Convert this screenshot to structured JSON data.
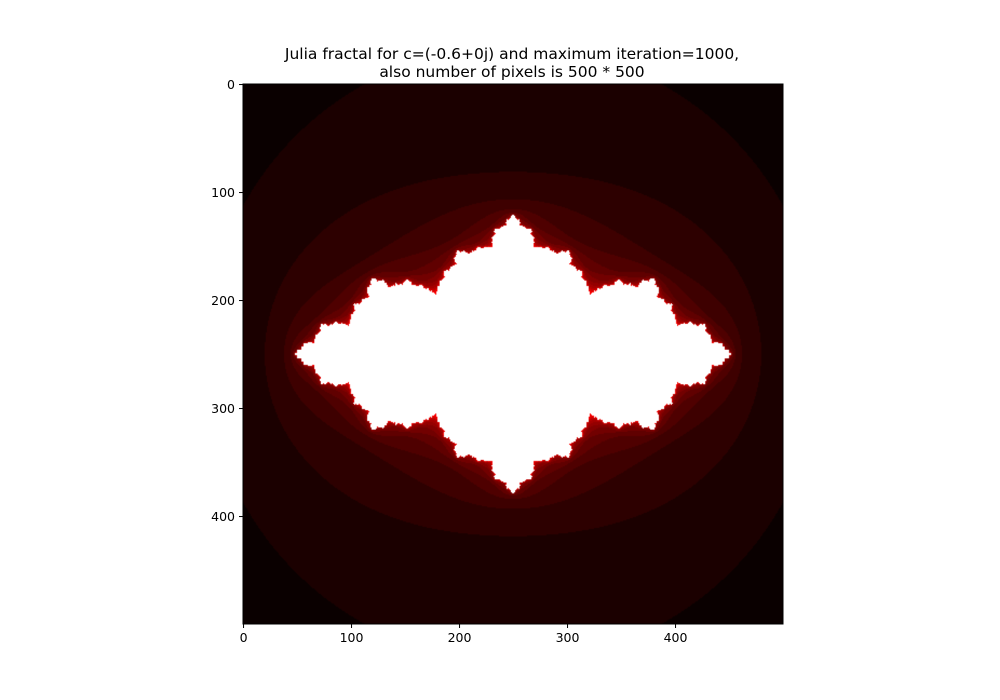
{
  "chart_data": {
    "type": "heatmap",
    "title_lines": [
      "Julia fractal for c=(-0.6+0j) and maximum iteration=1000,",
      "also number of pixels is 500 * 500"
    ],
    "image_size": [
      500,
      500
    ],
    "xlim": [
      -0.5,
      499.5
    ],
    "ylim": [
      499.5,
      -0.5
    ],
    "xticks": [
      0,
      100,
      200,
      300,
      400
    ],
    "yticks": [
      0,
      100,
      200,
      300,
      400
    ],
    "c": {
      "re": -0.6,
      "im": 0
    },
    "max_iteration": 1000,
    "escape_radius": 2,
    "complex_range": {
      "re": [
        -1.75,
        1.75
      ],
      "im": [
        -1.75,
        1.75
      ]
    },
    "colormap": {
      "name": "hot",
      "stops": [
        {
          "t": 0.0,
          "color": "#0a0000"
        },
        {
          "t": 0.365,
          "color": "#ff0000"
        },
        {
          "t": 0.746,
          "color": "#ffff00"
        },
        {
          "t": 1.0,
          "color": "#ffffff"
        }
      ]
    }
  }
}
